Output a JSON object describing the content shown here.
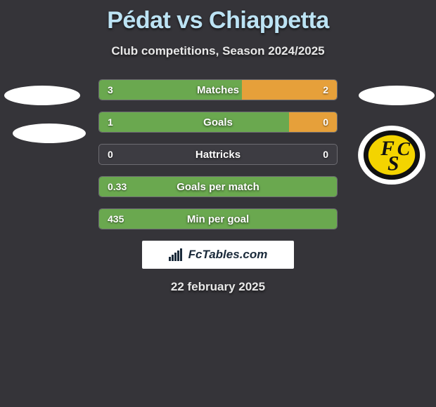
{
  "title": "Pédat vs Chiappetta",
  "subtitle": "Club competitions, Season 2024/2025",
  "date": "22 february 2025",
  "colors": {
    "background": "#353439",
    "left_fill": "#6aa84f",
    "right_fill": "#e6a03a",
    "bar_border": "#6d6c72",
    "bar_bg": "#3d3c42",
    "title_color": "#bce3f4",
    "text_color": "#e8e8e8",
    "logo_bg": "#ffffff"
  },
  "logo_text": "FcTables.com",
  "rows": [
    {
      "label": "Matches",
      "left": "3",
      "right": "2",
      "left_pct": 60,
      "right_pct": 40
    },
    {
      "label": "Goals",
      "left": "1",
      "right": "0",
      "left_pct": 100,
      "right_pct": 0,
      "right_orange_tail": 20
    },
    {
      "label": "Hattricks",
      "left": "0",
      "right": "0",
      "left_pct": 0,
      "right_pct": 0
    },
    {
      "label": "Goals per match",
      "left": "0.33",
      "right": "",
      "left_pct": 100,
      "right_pct": 0
    },
    {
      "label": "Min per goal",
      "left": "435",
      "right": "",
      "left_pct": 100,
      "right_pct": 0
    }
  ]
}
